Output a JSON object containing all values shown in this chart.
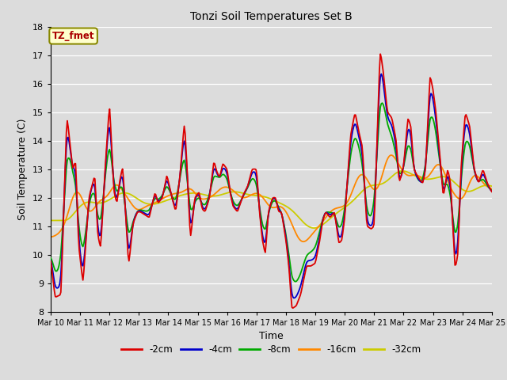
{
  "title": "Tonzi Soil Temperatures Set B",
  "xlabel": "Time",
  "ylabel": "Soil Temperature (C)",
  "ylim": [
    8.0,
    18.0
  ],
  "yticks": [
    8.0,
    9.0,
    10.0,
    11.0,
    12.0,
    13.0,
    14.0,
    15.0,
    16.0,
    17.0,
    18.0
  ],
  "bg_color": "#dcdcdc",
  "annotation_text": "TZ_fmet",
  "annotation_color": "#aa0000",
  "annotation_bg": "#ffffcc",
  "annotation_border": "#888800",
  "series_colors": [
    "#dd0000",
    "#0000cc",
    "#00aa00",
    "#ff8800",
    "#cccc00"
  ],
  "series_labels": [
    "-2cm",
    "-4cm",
    "-8cm",
    "-16cm",
    "-32cm"
  ],
  "lw": 1.3,
  "n_points": 480,
  "x_start": 10.0,
  "x_end": 25.0,
  "xtick_positions": [
    10,
    11,
    12,
    13,
    14,
    15,
    16,
    17,
    18,
    19,
    20,
    21,
    22,
    23,
    24,
    25
  ],
  "xtick_labels": [
    "Mar 10",
    "Mar 11",
    "Mar 12",
    "Mar 13",
    "Mar 14",
    "Mar 15",
    "Mar 16",
    "Mar 17",
    "Mar 18",
    "Mar 19",
    "Mar 20",
    "Mar 21",
    "Mar 22",
    "Mar 23",
    "Mar 24",
    "Mar 25"
  ],
  "figwidth": 6.4,
  "figheight": 4.8,
  "dpi": 100
}
